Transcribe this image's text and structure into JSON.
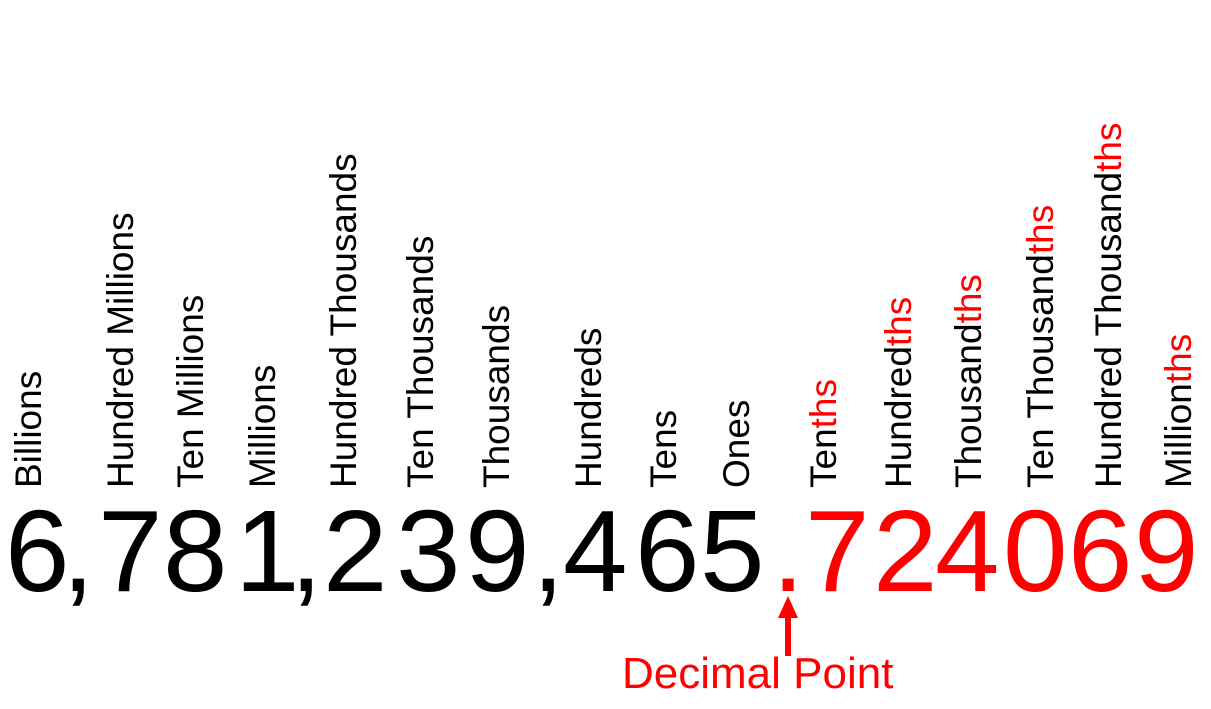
{
  "colors": {
    "black": "#000000",
    "red": "#ff0000"
  },
  "places": [
    {
      "base": "Billions",
      "suffix": ""
    },
    {
      "base": "Hundred Millions",
      "suffix": ""
    },
    {
      "base": "Ten Millions",
      "suffix": ""
    },
    {
      "base": "Millions",
      "suffix": ""
    },
    {
      "base": "Hundred Thousands",
      "suffix": ""
    },
    {
      "base": "Ten Thousands",
      "suffix": ""
    },
    {
      "base": "Thousands",
      "suffix": ""
    },
    {
      "base": "Hundreds",
      "suffix": ""
    },
    {
      "base": "Tens",
      "suffix": ""
    },
    {
      "base": "Ones",
      "suffix": ""
    },
    {
      "base": "Ten",
      "suffix": "ths"
    },
    {
      "base": "Hundred",
      "suffix": "ths"
    },
    {
      "base": "Thousand",
      "suffix": "ths"
    },
    {
      "base": "Ten Thousand",
      "suffix": "ths"
    },
    {
      "base": "Hundred Thousand",
      "suffix": "ths"
    },
    {
      "base": "Million",
      "suffix": "ths"
    }
  ],
  "number": [
    {
      "char": "6",
      "color": "black"
    },
    {
      "char": ",",
      "color": "black"
    },
    {
      "char": "7",
      "color": "black"
    },
    {
      "char": "8",
      "color": "black"
    },
    {
      "char": "1",
      "color": "black"
    },
    {
      "char": ",",
      "color": "black"
    },
    {
      "char": "2",
      "color": "black"
    },
    {
      "char": "3",
      "color": "black"
    },
    {
      "char": "9",
      "color": "black"
    },
    {
      "char": ",",
      "color": "black"
    },
    {
      "char": "4",
      "color": "black"
    },
    {
      "char": "6",
      "color": "black"
    },
    {
      "char": "5",
      "color": "black"
    },
    {
      "char": ".",
      "color": "red"
    },
    {
      "char": "7",
      "color": "red"
    },
    {
      "char": "2",
      "color": "red"
    },
    {
      "char": "4",
      "color": "red"
    },
    {
      "char": "0",
      "color": "red"
    },
    {
      "char": "6",
      "color": "red"
    },
    {
      "char": "9",
      "color": "red"
    }
  ],
  "decimal_point_label": "Decimal Point"
}
